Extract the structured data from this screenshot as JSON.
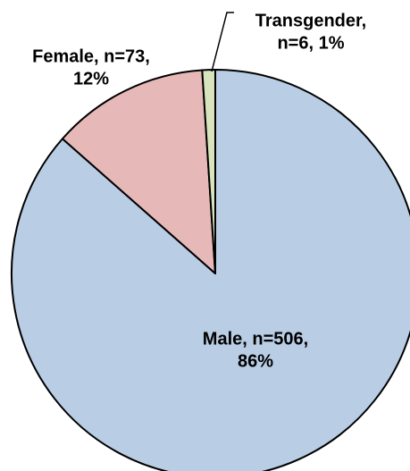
{
  "chart_data": {
    "type": "pie",
    "categories": [
      "Male",
      "Female",
      "Transgender"
    ],
    "values": [
      506,
      73,
      6
    ],
    "value_labels": [
      [
        "Male, n=506,",
        "86%"
      ],
      [
        "Female, n=73,",
        "12%"
      ],
      [
        "Transgender,",
        "n=6, 1%"
      ]
    ],
    "colors": [
      "#b9cde5",
      "#e6b9b8",
      "#d7e4bd"
    ]
  }
}
